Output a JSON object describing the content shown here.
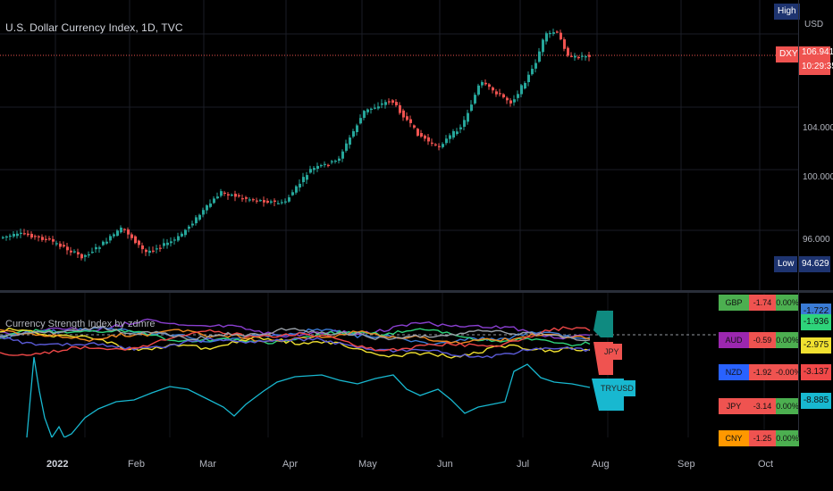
{
  "main": {
    "title": "U.S. Dollar Currency Index, 1D, TVC",
    "currency": "USD",
    "price_ticks": [
      "104.000",
      "100.000",
      "96.000"
    ],
    "current_price": "106.941",
    "countdown": "10:29:35",
    "symbol_badge": "DXY",
    "high_badge": "High",
    "low_badge": "Low",
    "low_value": "94.629"
  },
  "indicator": {
    "title": "Currency Strength Index by zdmre",
    "label_jpy": "JPY",
    "label_try": "TRYUSD",
    "table": [
      {
        "name": "GBP",
        "v1": "-1.74",
        "v2": "0.00%",
        "side": "-1.722",
        "color": "#3a7bd5"
      },
      {
        "name": "AUD",
        "v1": "-0.59",
        "v2": "0.00%",
        "side": "-1.936",
        "color": "#2ed37a"
      },
      {
        "name": "NZD",
        "v1": "-1.92",
        "v2": "-0.00%",
        "side": "-2.975",
        "color": "#f0e030"
      },
      {
        "name": "JPY",
        "v1": "-3.14",
        "v2": "0.00%",
        "side": "-3.137",
        "color": "#f04848"
      },
      {
        "name": "CNY",
        "v1": "-1.25",
        "v2": "0.00%",
        "side": "-8.885",
        "color": "#18b8d0"
      }
    ]
  },
  "x_axis": [
    "2022",
    "Feb",
    "Mar",
    "Apr",
    "May",
    "Jun",
    "Jul",
    "Aug",
    "Sep",
    "Oct"
  ],
  "colors": {
    "up": "#26a69a",
    "down": "#ef5350",
    "badge_blue": "#1e3470"
  }
}
